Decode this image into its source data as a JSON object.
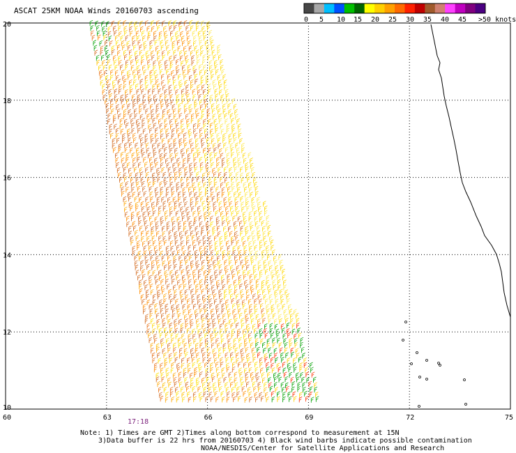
{
  "title": "ASCAT 25KM NOAA Winds 20160703 ascending",
  "colorbar": {
    "labels": [
      "0",
      "5",
      "10",
      "15",
      "20",
      "25",
      "30",
      "35",
      "40",
      "45",
      ">50 knots"
    ],
    "colors": [
      "#474747",
      "#a8a8a8",
      "#00bfff",
      "#0050ff",
      "#00c000",
      "#006400",
      "#ffff00",
      "#ffd000",
      "#ffa000",
      "#ff6a00",
      "#ff2000",
      "#c00000",
      "#a05a2c",
      "#d08070",
      "#ff40ff",
      "#c000c0",
      "#800080",
      "#4b0082"
    ]
  },
  "axes": {
    "lat_labels": [
      "20",
      "18",
      "16",
      "14",
      "12",
      "10"
    ],
    "lon_labels": [
      "60",
      "63",
      "66",
      "69",
      "72",
      "75"
    ]
  },
  "pass_time": "17:18",
  "notes": [
    "Note: 1) Times are GMT 2)Times along bottom correspond to measurement at 15N",
    "3)Data buffer is 22 hrs from 20160703 4) Black wind barbs indicate possible contamination",
    "NOAA/NESDIS/Center for Satellite Applications and Research"
  ]
}
